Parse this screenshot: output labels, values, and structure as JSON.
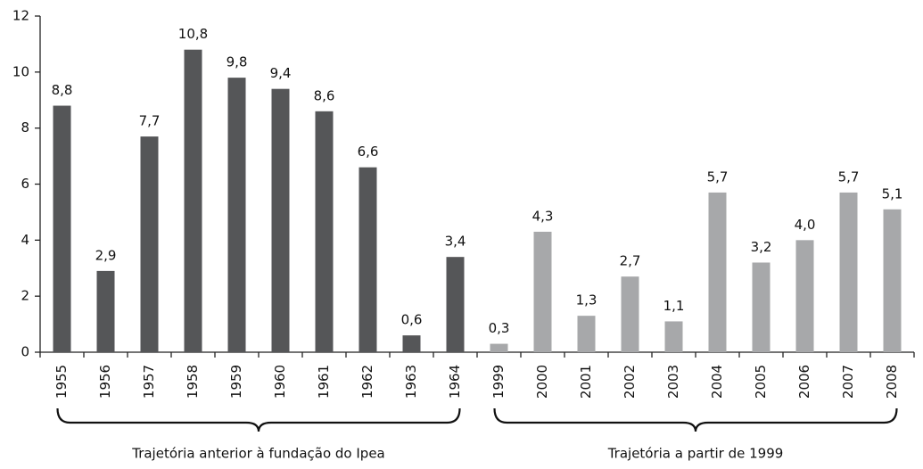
{
  "chart_data": {
    "type": "bar",
    "categories": [
      "1955",
      "1956",
      "1957",
      "1958",
      "1959",
      "1960",
      "1961",
      "1962",
      "1963",
      "1964",
      "1999",
      "2000",
      "2001",
      "2002",
      "2003",
      "2004",
      "2005",
      "2006",
      "2007",
      "2008"
    ],
    "values": [
      8.8,
      2.9,
      7.7,
      10.8,
      9.8,
      9.4,
      8.6,
      6.6,
      0.6,
      3.4,
      0.3,
      4.3,
      1.3,
      2.7,
      1.1,
      5.7,
      3.2,
      4.0,
      5.7,
      5.1
    ],
    "value_labels": [
      "8,8",
      "2,9",
      "7,7",
      "10,8",
      "9,8",
      "9,4",
      "8,6",
      "6,6",
      "0,6",
      "3,4",
      "0,3",
      "4,3",
      "1,3",
      "2,7",
      "1,1",
      "5,7",
      "3,2",
      "4,0",
      "5,7",
      "5,1"
    ],
    "colors": [
      "#555658",
      "#555658",
      "#555658",
      "#555658",
      "#555658",
      "#555658",
      "#555658",
      "#555658",
      "#555658",
      "#555658",
      "#a7a8aa",
      "#a7a8aa",
      "#a7a8aa",
      "#a7a8aa",
      "#a7a8aa",
      "#a7a8aa",
      "#a7a8aa",
      "#a7a8aa",
      "#a7a8aa",
      "#a7a8aa"
    ],
    "groups": [
      {
        "label": "Trajetória anterior à fundação do Ipea",
        "color": "#555658"
      },
      {
        "label": "Trajetória a partir de 1999",
        "color": "#a7a8aa"
      }
    ],
    "ylim": [
      0,
      12
    ],
    "yticks": [
      0,
      2,
      4,
      6,
      8,
      10,
      12
    ],
    "grid": false
  }
}
